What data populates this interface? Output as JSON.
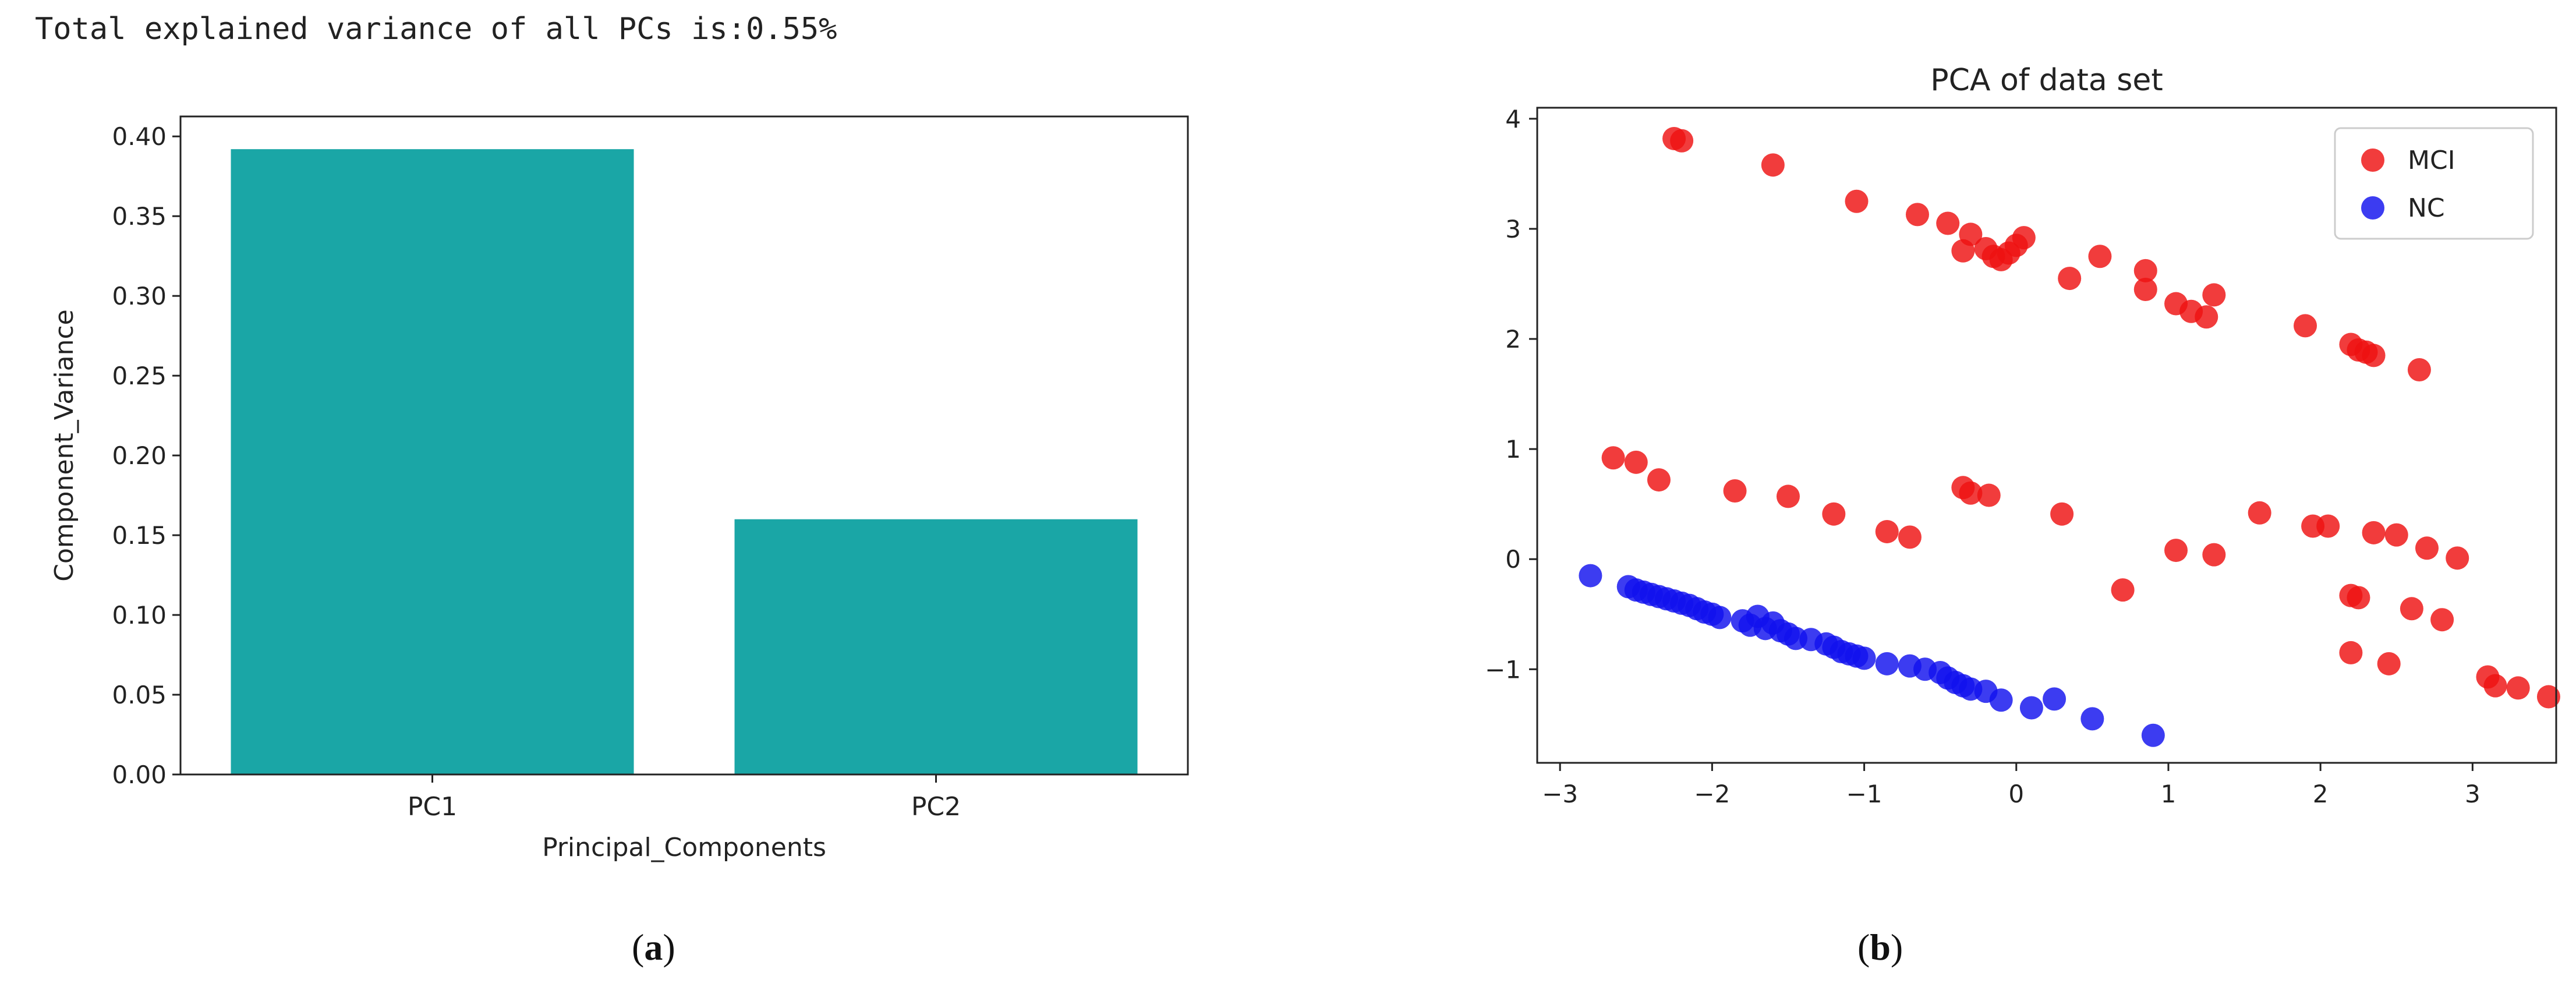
{
  "header": {
    "text": "Total explained variance of all PCs is:0.55%"
  },
  "subcaptions": {
    "a": "a",
    "b": "b"
  },
  "colors": {
    "bar": "#1aa6a6",
    "mci": "#ee1111",
    "nc": "#1111ee"
  },
  "chart_data": [
    {
      "type": "bar",
      "title": "",
      "xlabel": "Principal_Components",
      "ylabel": "Component_Variance",
      "categories": [
        "PC1",
        "PC2"
      ],
      "values": [
        0.392,
        0.16
      ],
      "ylim": [
        0,
        0.4125
      ],
      "yticks": [
        0.0,
        0.05,
        0.1,
        0.15,
        0.2,
        0.25,
        0.3,
        0.35,
        0.4
      ],
      "ytick_labels": [
        "0.00",
        "0.05",
        "0.10",
        "0.15",
        "0.20",
        "0.25",
        "0.30",
        "0.35",
        "0.40"
      ],
      "grid": false
    },
    {
      "type": "scatter",
      "title": "PCA of data set",
      "xlabel": "",
      "ylabel": "",
      "xlim": [
        -3.15,
        3.55
      ],
      "ylim": [
        -1.85,
        4.1
      ],
      "xticks": [
        -3,
        -2,
        -1,
        0,
        1,
        2,
        3
      ],
      "xtick_labels": [
        "−3",
        "−2",
        "−1",
        "0",
        "1",
        "2",
        "3"
      ],
      "yticks": [
        -1,
        0,
        1,
        2,
        3,
        4
      ],
      "ytick_labels": [
        "−1",
        "0",
        "1",
        "2",
        "3",
        "4"
      ],
      "grid": false,
      "legend": "top-right",
      "series": [
        {
          "name": "MCI",
          "points": [
            [
              -2.25,
              3.82
            ],
            [
              -2.2,
              3.8
            ],
            [
              -1.6,
              3.58
            ],
            [
              -1.05,
              3.25
            ],
            [
              -0.65,
              3.13
            ],
            [
              -0.45,
              3.05
            ],
            [
              -0.3,
              2.95
            ],
            [
              -0.35,
              2.8
            ],
            [
              -0.2,
              2.82
            ],
            [
              -0.15,
              2.75
            ],
            [
              -0.1,
              2.72
            ],
            [
              -0.05,
              2.78
            ],
            [
              0.0,
              2.85
            ],
            [
              0.05,
              2.92
            ],
            [
              0.35,
              2.55
            ],
            [
              0.55,
              2.75
            ],
            [
              0.85,
              2.62
            ],
            [
              0.85,
              2.45
            ],
            [
              1.05,
              2.32
            ],
            [
              1.15,
              2.25
            ],
            [
              1.25,
              2.2
            ],
            [
              1.3,
              2.4
            ],
            [
              1.9,
              2.12
            ],
            [
              2.2,
              1.95
            ],
            [
              2.25,
              1.9
            ],
            [
              2.3,
              1.88
            ],
            [
              2.35,
              1.85
            ],
            [
              2.65,
              1.72
            ],
            [
              -2.65,
              0.92
            ],
            [
              -2.5,
              0.88
            ],
            [
              -2.35,
              0.72
            ],
            [
              -1.85,
              0.62
            ],
            [
              -1.5,
              0.57
            ],
            [
              -1.2,
              0.41
            ],
            [
              -0.85,
              0.25
            ],
            [
              -0.7,
              0.2
            ],
            [
              -0.35,
              0.65
            ],
            [
              -0.3,
              0.6
            ],
            [
              -0.18,
              0.58
            ],
            [
              0.3,
              0.41
            ],
            [
              0.7,
              -0.28
            ],
            [
              1.05,
              0.08
            ],
            [
              1.3,
              0.04
            ],
            [
              1.6,
              0.42
            ],
            [
              1.95,
              0.3
            ],
            [
              2.05,
              0.3
            ],
            [
              2.35,
              0.24
            ],
            [
              2.5,
              0.22
            ],
            [
              2.7,
              0.1
            ],
            [
              2.9,
              0.01
            ],
            [
              2.6,
              -0.45
            ],
            [
              2.8,
              -0.55
            ],
            [
              2.2,
              -0.33
            ],
            [
              2.25,
              -0.35
            ],
            [
              2.2,
              -0.85
            ],
            [
              2.45,
              -0.95
            ],
            [
              3.1,
              -1.07
            ],
            [
              3.15,
              -1.15
            ],
            [
              3.3,
              -1.17
            ],
            [
              3.5,
              -1.25
            ]
          ]
        },
        {
          "name": "NC",
          "points": [
            [
              -2.8,
              -0.15
            ],
            [
              -2.55,
              -0.25
            ],
            [
              -2.5,
              -0.28
            ],
            [
              -2.45,
              -0.3
            ],
            [
              -2.4,
              -0.32
            ],
            [
              -2.35,
              -0.34
            ],
            [
              -2.3,
              -0.36
            ],
            [
              -2.25,
              -0.38
            ],
            [
              -2.2,
              -0.4
            ],
            [
              -2.15,
              -0.42
            ],
            [
              -2.1,
              -0.45
            ],
            [
              -2.05,
              -0.48
            ],
            [
              -2.0,
              -0.5
            ],
            [
              -1.95,
              -0.53
            ],
            [
              -1.8,
              -0.56
            ],
            [
              -1.75,
              -0.6
            ],
            [
              -1.7,
              -0.52
            ],
            [
              -1.65,
              -0.63
            ],
            [
              -1.6,
              -0.58
            ],
            [
              -1.55,
              -0.65
            ],
            [
              -1.5,
              -0.68
            ],
            [
              -1.45,
              -0.72
            ],
            [
              -1.35,
              -0.73
            ],
            [
              -1.25,
              -0.77
            ],
            [
              -1.2,
              -0.8
            ],
            [
              -1.15,
              -0.84
            ],
            [
              -1.1,
              -0.86
            ],
            [
              -1.05,
              -0.88
            ],
            [
              -1.0,
              -0.9
            ],
            [
              -0.85,
              -0.95
            ],
            [
              -0.7,
              -0.97
            ],
            [
              -0.6,
              -1.0
            ],
            [
              -0.5,
              -1.03
            ],
            [
              -0.45,
              -1.08
            ],
            [
              -0.4,
              -1.12
            ],
            [
              -0.35,
              -1.15
            ],
            [
              -0.3,
              -1.18
            ],
            [
              -0.2,
              -1.2
            ],
            [
              -0.1,
              -1.28
            ],
            [
              0.1,
              -1.35
            ],
            [
              0.25,
              -1.27
            ],
            [
              0.5,
              -1.45
            ],
            [
              0.9,
              -1.6
            ]
          ]
        }
      ]
    }
  ]
}
